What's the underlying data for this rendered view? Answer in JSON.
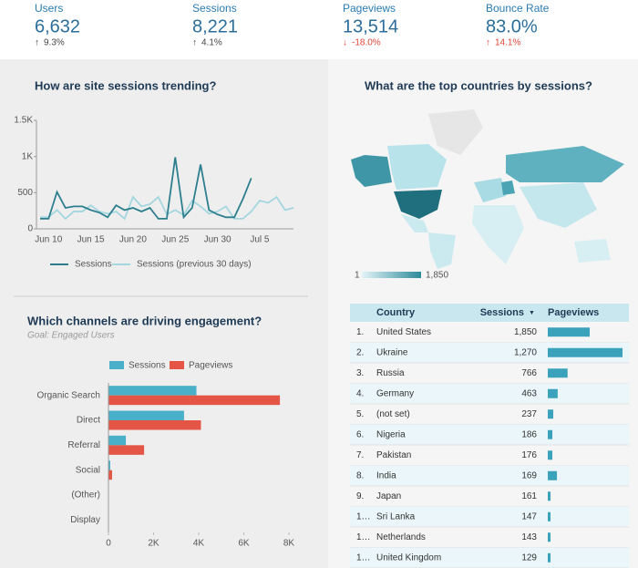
{
  "kpis": [
    {
      "label": "Users",
      "value": "6,632",
      "change": "9.3%"
    },
    {
      "label": "Sessions",
      "value": "8,221",
      "change": "4.1%"
    },
    {
      "label": "Pageviews",
      "value": "13,514",
      "change": "-18.0%"
    },
    {
      "label": "Bounce Rate",
      "value": "83.0%",
      "change": "14.1%"
    }
  ],
  "chart_data": [
    {
      "type": "line",
      "title": "How are site sessions trending?",
      "categories": [
        null,
        "Jun 10",
        null,
        null,
        null,
        null,
        "Jun 15",
        null,
        null,
        null,
        null,
        "Jun 20",
        null,
        null,
        null,
        null,
        "Jun 25",
        null,
        null,
        null,
        null,
        "Jun 30",
        null,
        null,
        null,
        null,
        "Jul 5",
        null,
        null,
        null,
        null
      ],
      "series": [
        {
          "name": "Sessions",
          "color": "#2d7f8e",
          "values": [
            140,
            140,
            510,
            290,
            310,
            310,
            260,
            225,
            160,
            325,
            260,
            290,
            240,
            290,
            140,
            140,
            990,
            160,
            290,
            890,
            260,
            200,
            160,
            160,
            410,
            700,
            null,
            null,
            null,
            null,
            null
          ]
        },
        {
          "name": "Sessions (previous 30 days)",
          "color": "#a3d6de",
          "values": [
            160,
            160,
            260,
            140,
            240,
            240,
            325,
            240,
            210,
            240,
            140,
            440,
            310,
            340,
            440,
            200,
            260,
            190,
            390,
            310,
            210,
            240,
            310,
            140,
            140,
            240,
            390,
            360,
            440,
            260,
            290
          ]
        }
      ],
      "ylim": [
        0,
        1500
      ],
      "yticks": [
        0,
        500,
        {
          "value": 1000,
          "label": "1K"
        },
        {
          "value": 1500,
          "label": "1.5K"
        }
      ]
    },
    {
      "type": "hbar",
      "title": "Which channels are driving engagement?",
      "subtitle": "Goal: Engaged Users",
      "categories": [
        "Organic Search",
        "Direct",
        "Referral",
        "Social",
        "(Other)",
        "Display"
      ],
      "series": [
        {
          "name": "Sessions",
          "color": "#4aafc8",
          "values": [
            3900,
            3350,
            770,
            80,
            0,
            0
          ]
        },
        {
          "name": "Pageviews",
          "color": "#e45545",
          "values": [
            7600,
            4100,
            1580,
            160,
            0,
            0
          ]
        }
      ],
      "xlim": [
        0,
        8000
      ],
      "xticks": [
        0,
        {
          "value": 2000,
          "label": "2K"
        },
        {
          "value": 4000,
          "label": "4K"
        },
        {
          "value": 6000,
          "label": "6K"
        },
        {
          "value": 8000,
          "label": "8K"
        }
      ]
    }
  ],
  "map": {
    "title": "What are the top countries by sessions?",
    "legend_min": "1",
    "legend_max": "1,850"
  },
  "table": {
    "columns": [
      "Country",
      "Sessions",
      "Pageviews"
    ],
    "rows": [
      [
        "1.",
        "United States",
        "1,850"
      ],
      [
        "2.",
        "Ukraine",
        "1,270"
      ],
      [
        "3.",
        "Russia",
        "766"
      ],
      [
        "4.",
        "Germany",
        "463"
      ],
      [
        "5.",
        "(not set)",
        "237"
      ],
      [
        "6.",
        "Nigeria",
        "186"
      ],
      [
        "7.",
        "Pakistan",
        "176"
      ],
      [
        "8.",
        "India",
        "169"
      ],
      [
        "9.",
        "Japan",
        "161"
      ],
      [
        "1…",
        "Sri Lanka",
        "147"
      ],
      [
        "1…",
        "Netherlands",
        "143"
      ],
      [
        "1…",
        "United Kingdom",
        "129"
      ]
    ],
    "pageviews": [
      2750,
      4900,
      1300,
      650,
      360,
      300,
      300,
      600,
      180,
      180,
      180,
      180
    ]
  }
}
